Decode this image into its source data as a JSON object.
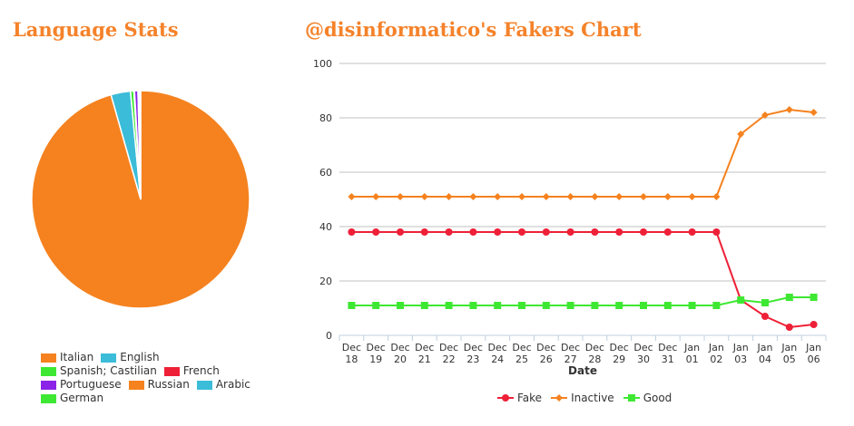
{
  "titles": {
    "language_stats": "Language Stats",
    "fakers_chart": "@disinformatico's Fakers Chart"
  },
  "chart_data": [
    {
      "type": "pie",
      "title": "Language Stats",
      "slices": [
        {
          "label": "Italian",
          "value": 95.6,
          "color": "#f5821f"
        },
        {
          "label": "English",
          "value": 2.9,
          "color": "#3bbcd8"
        },
        {
          "label": "Spanish; Castilian",
          "value": 0.5,
          "color": "#3ee832"
        },
        {
          "label": "French",
          "value": 0.1,
          "color": "#ee2037"
        },
        {
          "label": "Portuguese",
          "value": 0.5,
          "color": "#8a22e8"
        },
        {
          "label": "Russian",
          "value": 0.1,
          "color": "#f5821f"
        },
        {
          "label": "Arabic",
          "value": 0.1,
          "color": "#3bbcd8"
        },
        {
          "label": "German",
          "value": 0.2,
          "color": "#3ee832"
        }
      ],
      "legend": {
        "position": "bottom-left"
      }
    },
    {
      "type": "line",
      "title": "@disinformatico's Fakers Chart",
      "xlabel": "Date",
      "ylabel": "",
      "ylim": [
        0,
        100
      ],
      "yticks": [
        0,
        20,
        40,
        60,
        80,
        100
      ],
      "grid": true,
      "legend": {
        "position": "bottom"
      },
      "categories": [
        [
          "Dec",
          "18"
        ],
        [
          "Dec",
          "19"
        ],
        [
          "Dec",
          "20"
        ],
        [
          "Dec",
          "21"
        ],
        [
          "Dec",
          "22"
        ],
        [
          "Dec",
          "23"
        ],
        [
          "Dec",
          "24"
        ],
        [
          "Dec",
          "25"
        ],
        [
          "Dec",
          "26"
        ],
        [
          "Dec",
          "27"
        ],
        [
          "Dec",
          "28"
        ],
        [
          "Dec",
          "29"
        ],
        [
          "Dec",
          "30"
        ],
        [
          "Dec",
          "31"
        ],
        [
          "Jan",
          "01"
        ],
        [
          "Jan",
          "02"
        ],
        [
          "Jan",
          "03"
        ],
        [
          "Jan",
          "04"
        ],
        [
          "Jan",
          "05"
        ],
        [
          "Jan",
          "06"
        ]
      ],
      "series": [
        {
          "name": "Fake",
          "color": "#ee2037",
          "marker": "circle",
          "values": [
            38,
            38,
            38,
            38,
            38,
            38,
            38,
            38,
            38,
            38,
            38,
            38,
            38,
            38,
            38,
            38,
            13,
            7,
            3,
            4
          ]
        },
        {
          "name": "Inactive",
          "color": "#f5821f",
          "marker": "diamond",
          "values": [
            51,
            51,
            51,
            51,
            51,
            51,
            51,
            51,
            51,
            51,
            51,
            51,
            51,
            51,
            51,
            51,
            74,
            81,
            83,
            82
          ]
        },
        {
          "name": "Good",
          "color": "#3ee832",
          "marker": "square",
          "values": [
            11,
            11,
            11,
            11,
            11,
            11,
            11,
            11,
            11,
            11,
            11,
            11,
            11,
            11,
            11,
            11,
            13,
            12,
            14,
            14
          ]
        }
      ]
    }
  ]
}
